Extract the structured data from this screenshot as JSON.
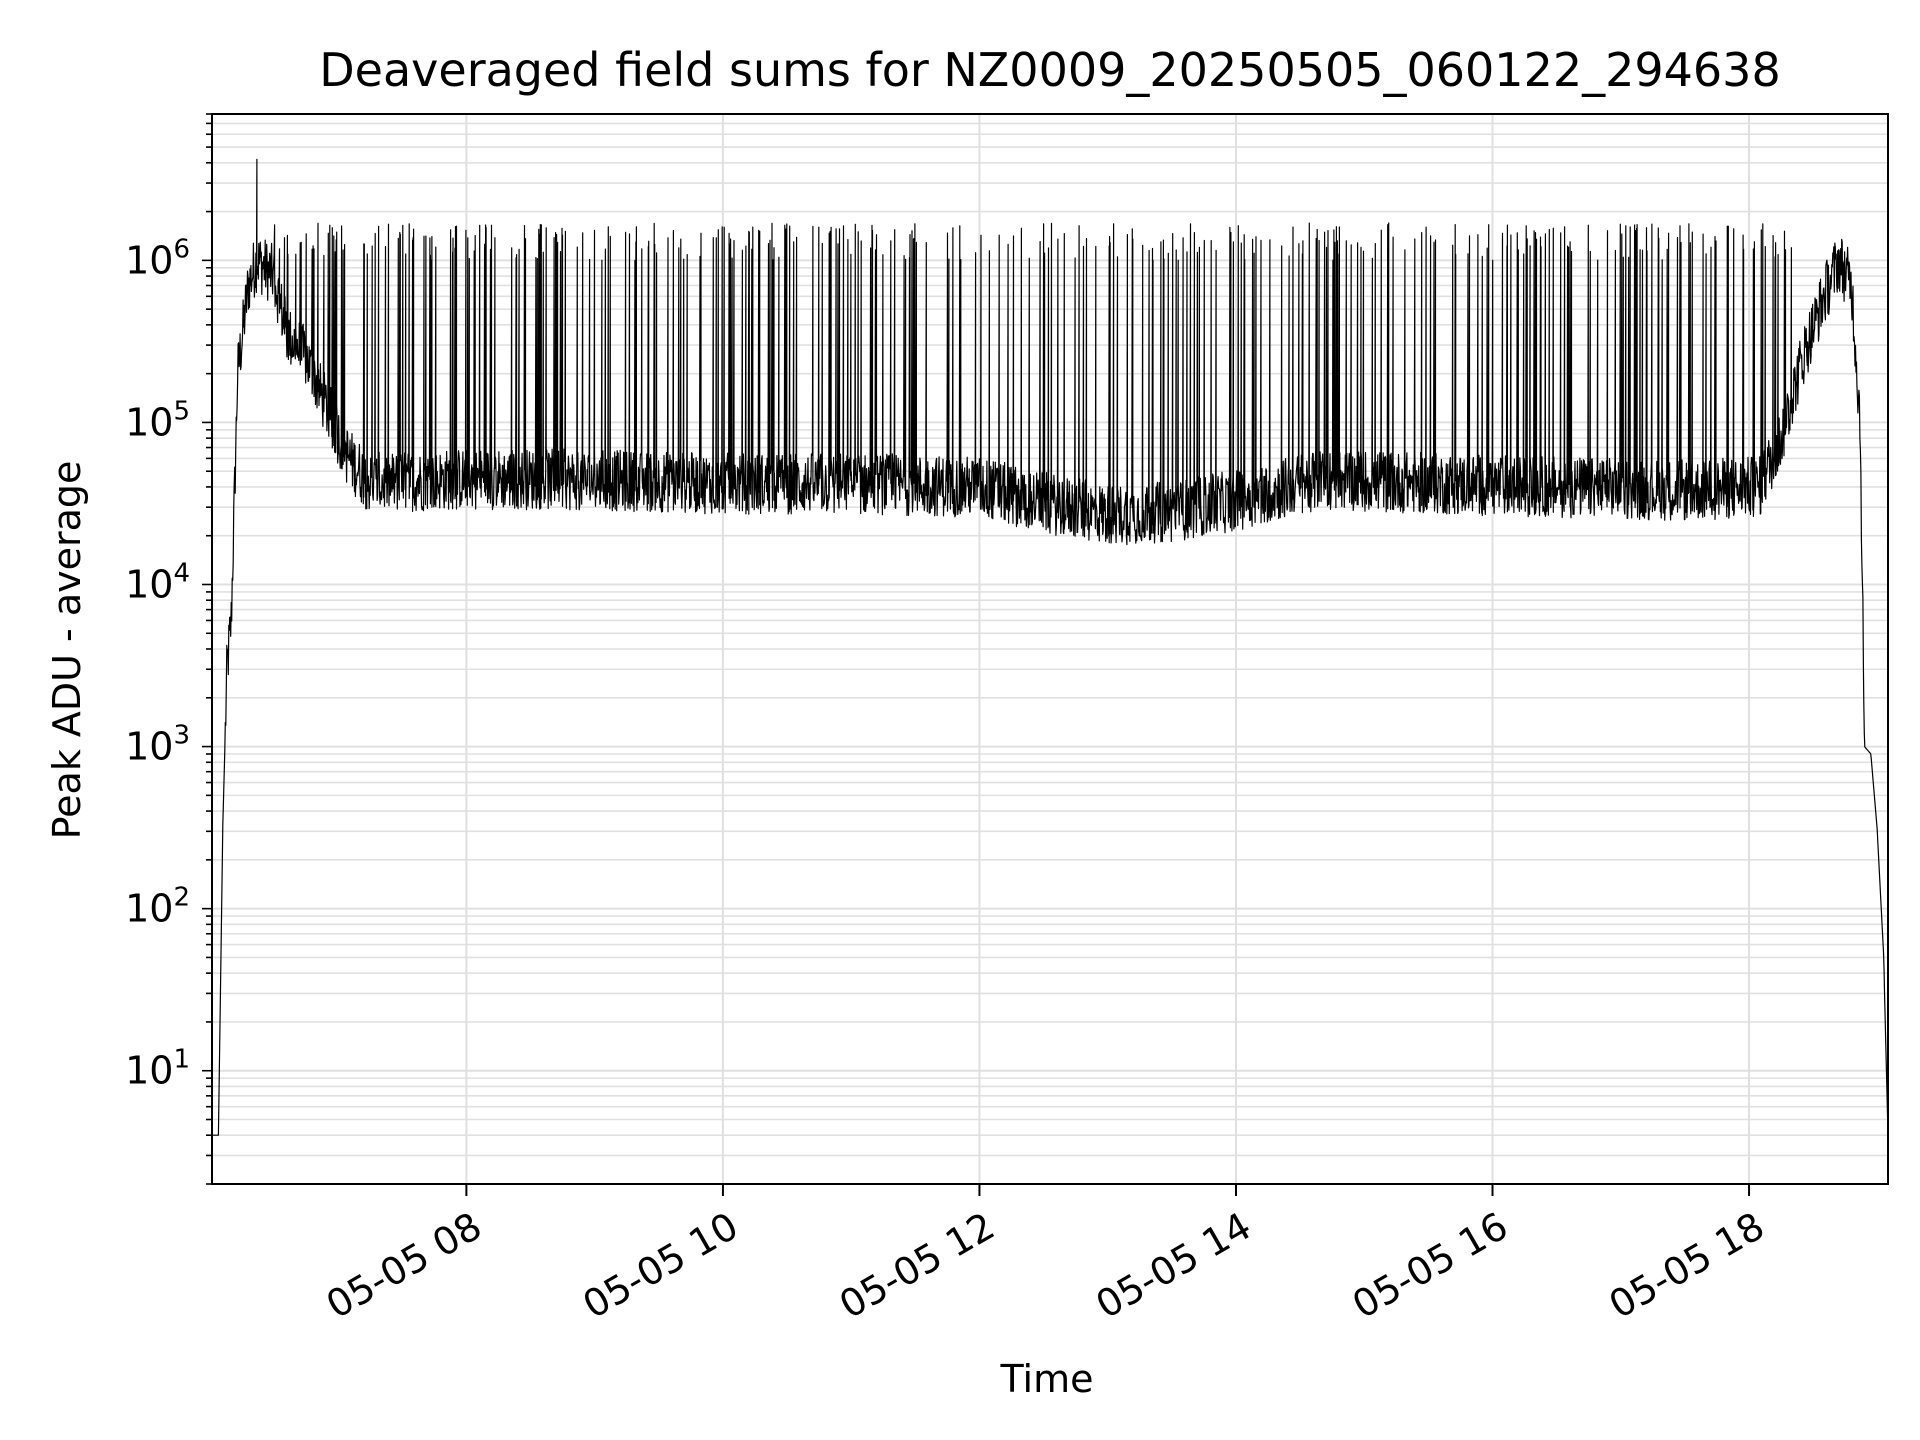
{
  "chart_data": {
    "type": "line",
    "title": "Deaveraged field sums for NZ0009_20250505_060122_294638",
    "xlabel": "Time",
    "ylabel": "Peak ADU - average",
    "yscale": "log",
    "grid": true,
    "x_range": [
      "2025-05-05 06:01",
      "2025-05-05 19:05"
    ],
    "ylim": [
      2,
      8000000
    ],
    "x_ticks": [
      {
        "label": "05-05 08",
        "value": "2025-05-05 08:00"
      },
      {
        "label": "05-05 10",
        "value": "2025-05-05 10:00"
      },
      {
        "label": "05-05 12",
        "value": "2025-05-05 12:00"
      },
      {
        "label": "05-05 14",
        "value": "2025-05-05 14:00"
      },
      {
        "label": "05-05 16",
        "value": "2025-05-05 16:00"
      },
      {
        "label": "05-05 18",
        "value": "2025-05-05 18:00"
      }
    ],
    "y_ticks": [
      {
        "base": "10",
        "exp": "1",
        "value": 10
      },
      {
        "base": "10",
        "exp": "2",
        "value": 100
      },
      {
        "base": "10",
        "exp": "3",
        "value": 1000
      },
      {
        "base": "10",
        "exp": "4",
        "value": 10000
      },
      {
        "base": "10",
        "exp": "5",
        "value": 100000
      },
      {
        "base": "10",
        "exp": "6",
        "value": 1000000
      }
    ],
    "line_color": "#000000",
    "grid_color": "#e0e0e0",
    "series": [
      {
        "envelope": {
          "baseline": [
            [
              "2025-05-05 06:01",
              4
            ],
            [
              "2025-05-05 06:04",
              4
            ],
            [
              "2025-05-05 06:06",
              300
            ],
            [
              "2025-05-05 06:08",
              3000
            ],
            [
              "2025-05-05 06:10",
              6000
            ],
            [
              "2025-05-05 06:13",
              200000
            ],
            [
              "2025-05-05 06:18",
              700000
            ],
            [
              "2025-05-05 06:22",
              1000000
            ],
            [
              "2025-05-05 06:30",
              800000
            ],
            [
              "2025-05-05 06:36",
              350000
            ],
            [
              "2025-05-05 06:45",
              250000
            ],
            [
              "2025-05-05 06:55",
              120000
            ],
            [
              "2025-05-05 07:05",
              60000
            ],
            [
              "2025-05-05 07:15",
              42000
            ],
            [
              "2025-05-05 08:00",
              45000
            ],
            [
              "2025-05-05 09:00",
              44000
            ],
            [
              "2025-05-05 10:00",
              42000
            ],
            [
              "2025-05-05 11:00",
              42000
            ],
            [
              "2025-05-05 12:00",
              40000
            ],
            [
              "2025-05-05 12:30",
              32000
            ],
            [
              "2025-05-05 13:00",
              27000
            ],
            [
              "2025-05-05 13:30",
              28000
            ],
            [
              "2025-05-05 14:00",
              33000
            ],
            [
              "2025-05-05 14:40",
              45000
            ],
            [
              "2025-05-05 15:30",
              42000
            ],
            [
              "2025-05-05 16:30",
              40000
            ],
            [
              "2025-05-05 17:30",
              38000
            ],
            [
              "2025-05-05 18:05",
              40000
            ],
            [
              "2025-05-05 18:15",
              80000
            ],
            [
              "2025-05-05 18:25",
              250000
            ],
            [
              "2025-05-05 18:35",
              600000
            ],
            [
              "2025-05-05 18:42",
              1000000
            ],
            [
              "2025-05-05 18:48",
              700000
            ],
            [
              "2025-05-05 18:52",
              100000
            ],
            [
              "2025-05-05 18:54",
              1000
            ],
            [
              "2025-05-05 18:57",
              900
            ],
            [
              "2025-05-05 19:00",
              300
            ],
            [
              "2025-05-05 19:03",
              50
            ],
            [
              "2025-05-05 19:05",
              4
            ]
          ],
          "spike_start": "2025-05-05 06:30",
          "spike_end": "2025-05-05 18:20",
          "spike_peak_min": 1000000,
          "spike_peak_max": 1700000,
          "max_point": [
            "2025-05-05 06:22",
            4200000
          ]
        }
      }
    ]
  }
}
